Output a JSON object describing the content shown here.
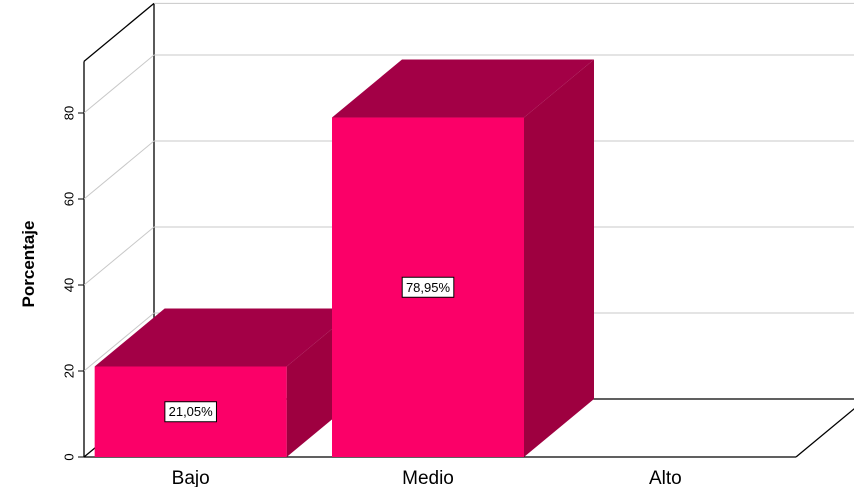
{
  "chart_data": {
    "type": "bar",
    "categories": [
      "Bajo",
      "Medio",
      "Alto"
    ],
    "values": [
      21.05,
      78.95,
      0
    ],
    "data_labels": [
      "21,05%",
      "78,95%",
      ""
    ],
    "ylabel": "Porcentaje",
    "xlabel": "",
    "y_ticks": [
      "0",
      "20",
      "40",
      "60",
      "80"
    ],
    "ylim": [
      0,
      92
    ],
    "grid": true,
    "three_d": true,
    "bar_color": "#fb0068",
    "bar_top_color": "#a30046",
    "bar_side_color": "#9e0040"
  }
}
